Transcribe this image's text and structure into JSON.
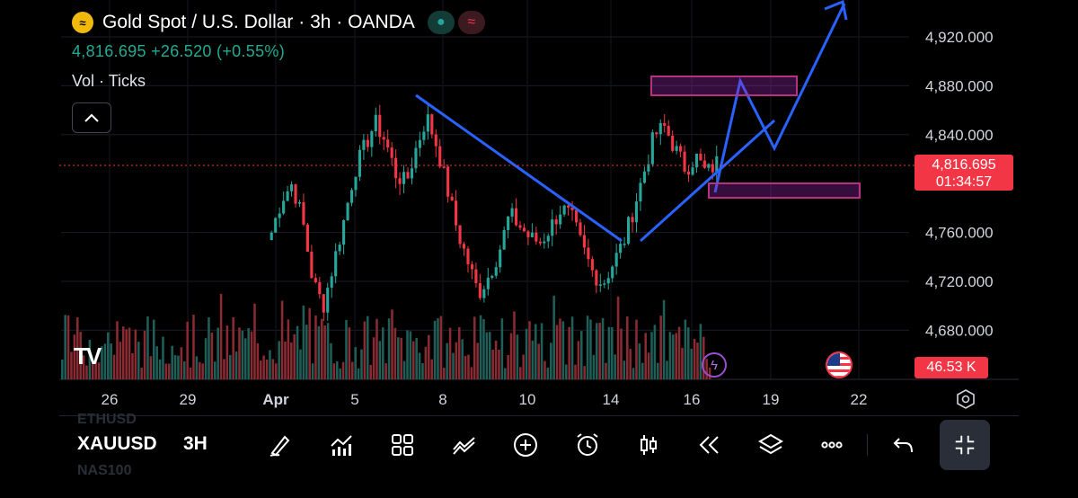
{
  "header": {
    "title": "Gold Spot / U.S. Dollar · 3h · OANDA",
    "price_line": "4,816.695  +26.520 (+0.55%)",
    "vol_label": "Vol · Ticks",
    "badge_right": "≈"
  },
  "price_scale": {
    "labels": [
      "4,920.000",
      "4,880.000",
      "4,840.000",
      "4,760.000",
      "4,720.000",
      "4,680.000"
    ],
    "values": [
      4920,
      4880,
      4840,
      4760,
      4720,
      4680
    ]
  },
  "current": {
    "price": "4,816.695",
    "countdown": "01:34:57",
    "volume": "46.53 K"
  },
  "time_axis": [
    "26",
    "29",
    "Apr",
    "5",
    "8",
    "10",
    "14",
    "16",
    "19",
    "22"
  ],
  "bottom_bar": {
    "symbol": "XAUUSD",
    "timeframe": "3H",
    "ghost_above": "ETHUSD",
    "ghost_below": "NAS100"
  },
  "colors": {
    "up": "#26a69a",
    "down": "#f23645",
    "drawing": "#2962ff",
    "zone": "#9c27b0",
    "price_line": "#f23645"
  },
  "icons": [
    "brush-icon",
    "indicators-icon",
    "layout-icon",
    "drawing-tools-icon",
    "add-icon",
    "alarm-icon",
    "candle-type-icon",
    "replay-icon",
    "layers-icon",
    "more-icon",
    "undo-icon",
    "fullscreen-icon"
  ],
  "chart_data": {
    "type": "candlestick",
    "y_range": [
      4655,
      4945
    ],
    "close_sequence": [
      4760,
      4788,
      4800,
      4770,
      4720,
      4700,
      4735,
      4770,
      4810,
      4830,
      4850,
      4835,
      4808,
      4800,
      4830,
      4855,
      4830,
      4795,
      4760,
      4735,
      4710,
      4725,
      4745,
      4775,
      4765,
      4755,
      4752,
      4765,
      4780,
      4772,
      4748,
      4728,
      4718,
      4735,
      4752,
      4780,
      4810,
      4840,
      4846,
      4828,
      4812,
      4822,
      4808,
      4817
    ],
    "current_price": 4816.695
  }
}
